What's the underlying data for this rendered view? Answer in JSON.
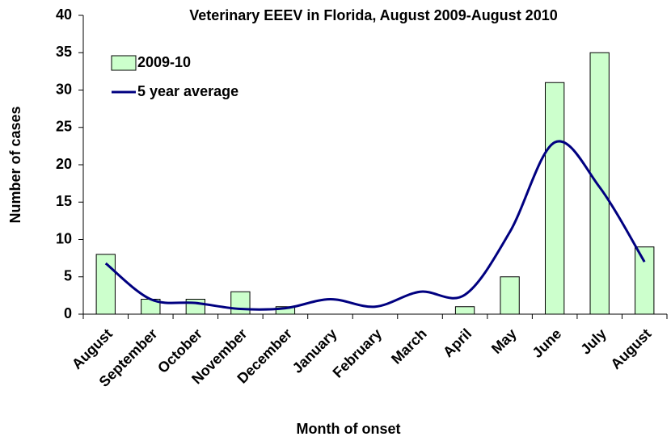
{
  "chart_data": {
    "type": "bar-line",
    "title": "Veterinary EEEV in Florida, August 2009-August 2010",
    "x_label": "Month of onset",
    "y_label": "Number of cases",
    "categories": [
      "August",
      "September",
      "October",
      "November",
      "December",
      "January",
      "February",
      "March",
      "April",
      "May",
      "June",
      "July",
      "August"
    ],
    "series": [
      {
        "name": "2009-10",
        "type": "bar",
        "color": "#ccffcc",
        "values": [
          8,
          2,
          2,
          3,
          1,
          0,
          0,
          0,
          1,
          5,
          31,
          35,
          9
        ]
      },
      {
        "name": "5 year average",
        "type": "line",
        "color": "#000080",
        "values": [
          6.8,
          2,
          1.5,
          0.7,
          0.8,
          2,
          1,
          3,
          2.6,
          11,
          23,
          17,
          7
        ]
      }
    ],
    "ylim": [
      0,
      40
    ],
    "yticks": [
      0,
      5,
      10,
      15,
      20,
      25,
      30,
      35,
      40
    ],
    "legend": "upper-left"
  }
}
